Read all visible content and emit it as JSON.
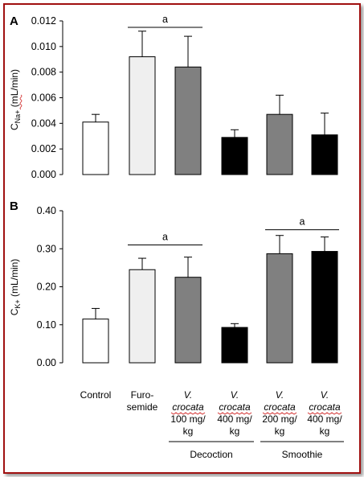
{
  "chart_data": [
    {
      "type": "bar",
      "panel": "A",
      "ylabel": "C",
      "ylabel_sub": "Na+",
      "ylabel_unit": "(mL/min)",
      "ylim": [
        0,
        0.012
      ],
      "ticks": [
        "0.000",
        "0.002",
        "0.004",
        "0.006",
        "0.008",
        "0.010",
        "0.012"
      ],
      "tick_values": [
        0,
        0.002,
        0.004,
        0.006,
        0.008,
        0.01,
        0.012
      ],
      "values": [
        0.0041,
        0.0092,
        0.0084,
        0.0029,
        0.0047,
        0.0031
      ],
      "errors": [
        0.0006,
        0.002,
        0.0024,
        0.0006,
        0.0015,
        0.0017
      ],
      "fills": [
        "#ffffff",
        "#efefef",
        "#808080",
        "#000000",
        "#808080",
        "#000000"
      ],
      "significance": [
        {
          "label": "a",
          "from": 1,
          "to": 2,
          "y": 0.0115
        }
      ]
    },
    {
      "type": "bar",
      "panel": "B",
      "ylabel": "C",
      "ylabel_sub": "K+",
      "ylabel_unit": "(mL/min)",
      "ylim": [
        0,
        0.4
      ],
      "ticks": [
        "0.00",
        "0.10",
        "0.20",
        "0.30",
        "0.40"
      ],
      "tick_values": [
        0,
        0.1,
        0.2,
        0.3,
        0.4
      ],
      "values": [
        0.115,
        0.245,
        0.225,
        0.093,
        0.287,
        0.293
      ],
      "errors": [
        0.028,
        0.03,
        0.053,
        0.01,
        0.048,
        0.038
      ],
      "fills": [
        "#ffffff",
        "#efefef",
        "#808080",
        "#000000",
        "#808080",
        "#000000"
      ],
      "significance": [
        {
          "label": "a",
          "from": 1,
          "to": 2,
          "y": 0.31
        },
        {
          "label": "a",
          "from": 4,
          "to": 5,
          "y": 0.35
        }
      ]
    }
  ],
  "categories": [
    {
      "lines": [
        "Control"
      ]
    },
    {
      "lines": [
        "Furo-",
        "semide"
      ]
    },
    {
      "lines": [
        "V.",
        "crocata",
        "100 mg/",
        "kg"
      ],
      "italic": 2
    },
    {
      "lines": [
        "V.",
        "crocata",
        "400 mg/",
        "kg"
      ],
      "italic": 2
    },
    {
      "lines": [
        "V.",
        "crocata",
        "200 mg/",
        "kg"
      ],
      "italic": 2
    },
    {
      "lines": [
        "V.",
        "crocata",
        "400 mg/",
        "kg"
      ],
      "italic": 2
    }
  ],
  "groups": [
    {
      "label": "Decoction",
      "from": 2,
      "to": 3
    },
    {
      "label": "Smoothie",
      "from": 4,
      "to": 5
    }
  ],
  "colors": {
    "frame": "#a01010",
    "squiggle": "#d02020"
  }
}
